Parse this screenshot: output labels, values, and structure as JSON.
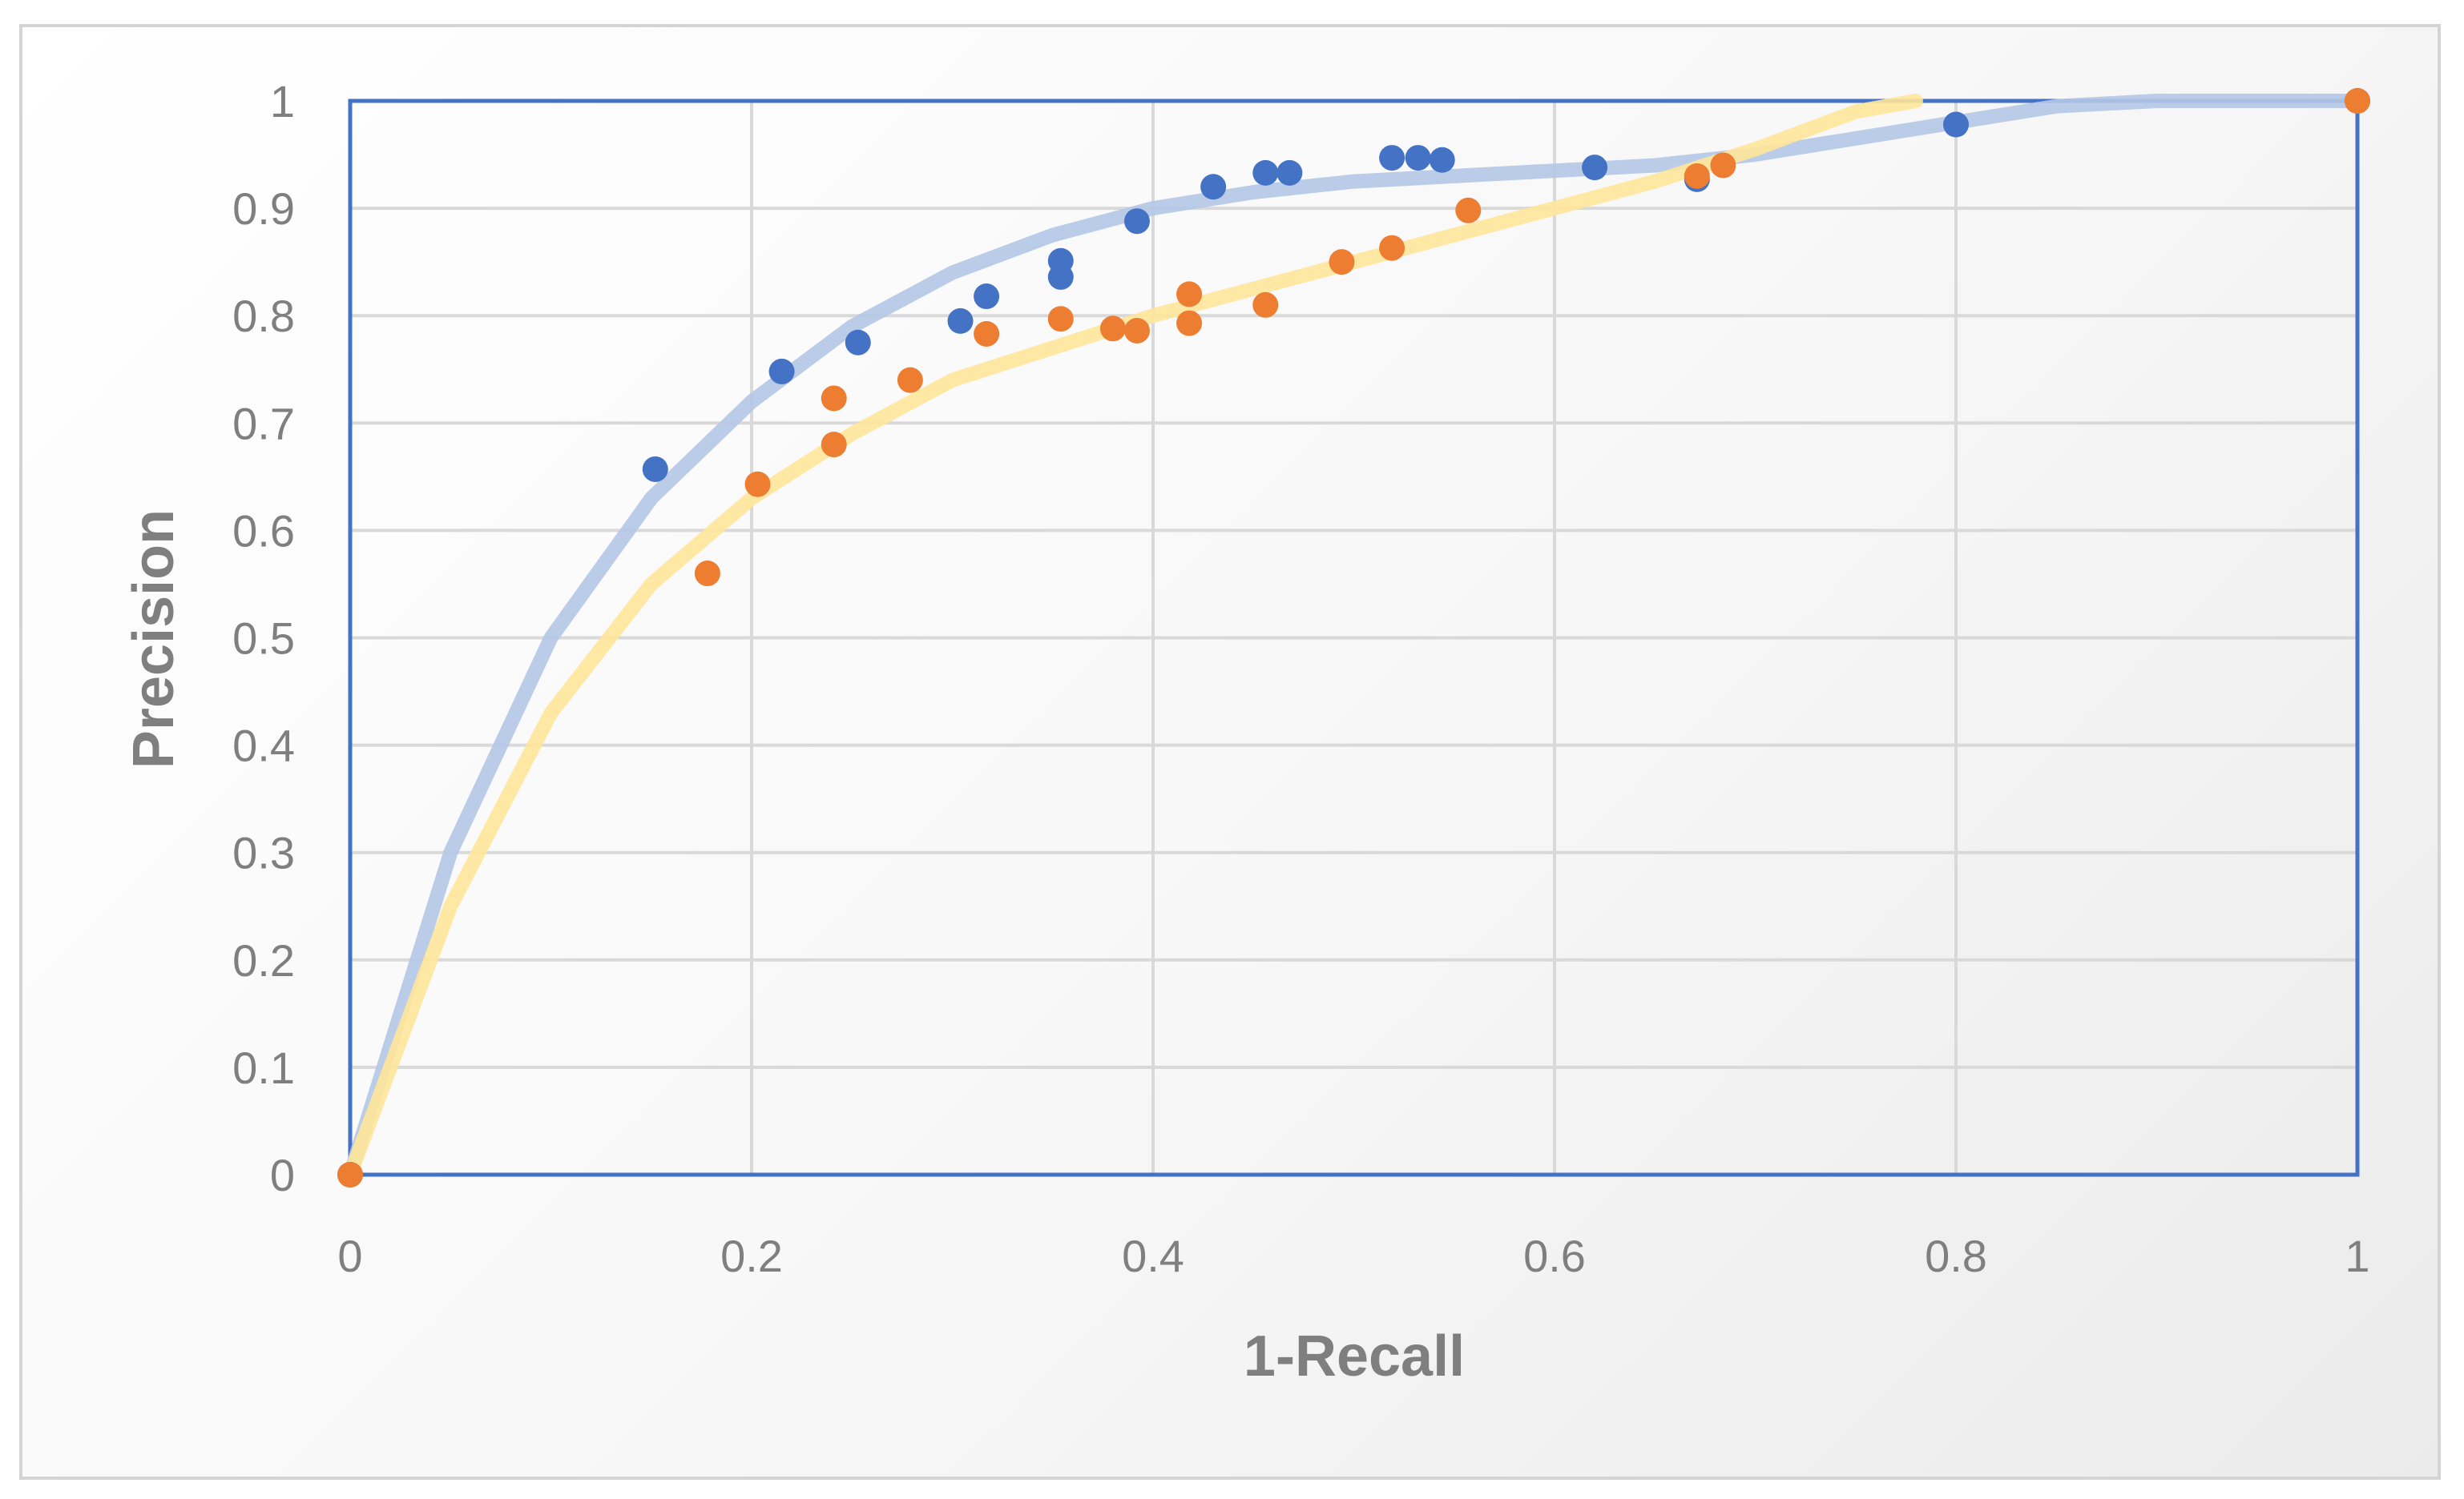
{
  "chart_data": {
    "type": "scatter",
    "title": "",
    "xlabel": "1-Recall",
    "ylabel": "Precision",
    "xlim": [
      0,
      1
    ],
    "ylim": [
      0,
      1
    ],
    "x_ticks": [
      "0",
      "0.2",
      "0.4",
      "0.6",
      "0.8",
      "1"
    ],
    "y_ticks": [
      "0",
      "0.1",
      "0.2",
      "0.3",
      "0.4",
      "0.5",
      "0.6",
      "0.7",
      "0.8",
      "0.9",
      "1"
    ],
    "grid": true,
    "legend": "none",
    "series": [
      {
        "color": "#4472c4",
        "trendline_color": "#b4c7e7",
        "points": [
          [
            0,
            0
          ],
          [
            0.152,
            0.657
          ],
          [
            0.215,
            0.748
          ],
          [
            0.253,
            0.775
          ],
          [
            0.304,
            0.795
          ],
          [
            0.317,
            0.818
          ],
          [
            0.354,
            0.836
          ],
          [
            0.354,
            0.851
          ],
          [
            0.392,
            0.888
          ],
          [
            0.43,
            0.92
          ],
          [
            0.456,
            0.933
          ],
          [
            0.468,
            0.933
          ],
          [
            0.519,
            0.947
          ],
          [
            0.532,
            0.947
          ],
          [
            0.544,
            0.945
          ],
          [
            0.62,
            0.938
          ],
          [
            0.671,
            0.927
          ],
          [
            0.8,
            0.978
          ],
          [
            1,
            1
          ]
        ],
        "trendline": [
          [
            0,
            0
          ],
          [
            0.05,
            0.3
          ],
          [
            0.1,
            0.5
          ],
          [
            0.15,
            0.63
          ],
          [
            0.2,
            0.72
          ],
          [
            0.25,
            0.79
          ],
          [
            0.3,
            0.84
          ],
          [
            0.35,
            0.875
          ],
          [
            0.4,
            0.9
          ],
          [
            0.45,
            0.915
          ],
          [
            0.5,
            0.925
          ],
          [
            0.55,
            0.93
          ],
          [
            0.6,
            0.935
          ],
          [
            0.65,
            0.94
          ],
          [
            0.7,
            0.95
          ],
          [
            0.75,
            0.965
          ],
          [
            0.8,
            0.98
          ],
          [
            0.85,
            0.995
          ],
          [
            0.9,
            1.0
          ],
          [
            1,
            1
          ]
        ]
      },
      {
        "color": "#ed7d31",
        "trendline_color": "#ffe699",
        "points": [
          [
            0,
            0
          ],
          [
            0.178,
            0.56
          ],
          [
            0.203,
            0.643
          ],
          [
            0.241,
            0.68
          ],
          [
            0.241,
            0.723
          ],
          [
            0.279,
            0.74
          ],
          [
            0.317,
            0.783
          ],
          [
            0.354,
            0.797
          ],
          [
            0.38,
            0.788
          ],
          [
            0.392,
            0.786
          ],
          [
            0.418,
            0.82
          ],
          [
            0.418,
            0.793
          ],
          [
            0.456,
            0.81
          ],
          [
            0.494,
            0.85
          ],
          [
            0.519,
            0.863
          ],
          [
            0.557,
            0.898
          ],
          [
            0.671,
            0.93
          ],
          [
            0.684,
            0.94
          ],
          [
            1,
            1
          ]
        ],
        "trendline": [
          [
            0,
            0
          ],
          [
            0.05,
            0.25
          ],
          [
            0.1,
            0.43
          ],
          [
            0.15,
            0.55
          ],
          [
            0.2,
            0.63
          ],
          [
            0.25,
            0.69
          ],
          [
            0.3,
            0.74
          ],
          [
            0.35,
            0.77
          ],
          [
            0.4,
            0.8
          ],
          [
            0.45,
            0.825
          ],
          [
            0.5,
            0.85
          ],
          [
            0.55,
            0.875
          ],
          [
            0.6,
            0.9
          ],
          [
            0.65,
            0.925
          ],
          [
            0.7,
            0.955
          ],
          [
            0.75,
            0.99
          ],
          [
            0.78,
            1.0
          ]
        ]
      }
    ]
  }
}
